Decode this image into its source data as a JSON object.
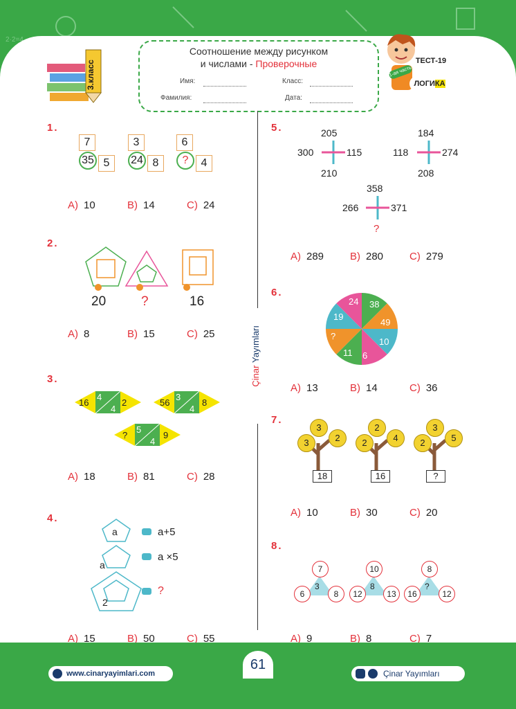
{
  "header": {
    "title_line1": "Соотношение между рисунком",
    "title_line2_a": "и числами - ",
    "title_line2_b": "Проверочные",
    "name_label": "Имя:",
    "class_label": "Класс:",
    "surname_label": "Фамилия:",
    "date_label": "Дата:",
    "grade_badge": "3.класс",
    "test_label": "ТЕСТ-19",
    "part_label": "1-ая часть",
    "subject_label_a": "ЛОГИ",
    "subject_label_b": "КА"
  },
  "side_label_a": "Çinar",
  "side_label_b": "Yayımları",
  "questions": {
    "q1": {
      "num": "1.",
      "tops": [
        "7",
        "3",
        "6"
      ],
      "circles": [
        "35",
        "24",
        "?"
      ],
      "sides": [
        "5",
        "8",
        "4"
      ],
      "options": [
        {
          "k": "A)",
          "v": "10"
        },
        {
          "k": "B)",
          "v": "14"
        },
        {
          "k": "C)",
          "v": "24"
        }
      ]
    },
    "q2": {
      "num": "2.",
      "values": [
        "20",
        "?",
        "16"
      ],
      "options": [
        {
          "k": "A)",
          "v": "8"
        },
        {
          "k": "B)",
          "v": "15"
        },
        {
          "k": "C)",
          "v": "25"
        }
      ]
    },
    "q3": {
      "num": "3.",
      "shapes": [
        {
          "left": "16",
          "top": "4",
          "bottom": "4",
          "right": "2"
        },
        {
          "left": "56",
          "top": "3",
          "bottom": "4",
          "right": "8"
        },
        {
          "left": "?",
          "top": "5",
          "bottom": "4",
          "right": "9"
        }
      ],
      "options": [
        {
          "k": "A)",
          "v": "18"
        },
        {
          "k": "B)",
          "v": "81"
        },
        {
          "k": "C)",
          "v": "28"
        }
      ]
    },
    "q4": {
      "num": "4.",
      "a1": "a",
      "a2": "a",
      "a3": "2",
      "rule1": "a+5",
      "rule2": "a ×5",
      "rule3": "?",
      "options": [
        {
          "k": "A)",
          "v": "15"
        },
        {
          "k": "B)",
          "v": "50"
        },
        {
          "k": "C)",
          "v": "55"
        }
      ]
    },
    "q5": {
      "num": "5.",
      "cross1": {
        "top": "205",
        "left": "300",
        "right": "115",
        "bottom": "210"
      },
      "cross2": {
        "top": "184",
        "left": "118",
        "right": "274",
        "bottom": "208"
      },
      "cross3": {
        "top": "358",
        "left": "266",
        "right": "371",
        "bottom": "?"
      },
      "options": [
        {
          "k": "A)",
          "v": "289"
        },
        {
          "k": "B)",
          "v": "280"
        },
        {
          "k": "C)",
          "v": "279"
        }
      ]
    },
    "q6": {
      "num": "6.",
      "slices": [
        "24",
        "38",
        "49",
        "10",
        "6",
        "11",
        "?",
        "19"
      ],
      "options": [
        {
          "k": "A)",
          "v": "13"
        },
        {
          "k": "B)",
          "v": "14"
        },
        {
          "k": "C)",
          "v": "36"
        }
      ]
    },
    "q7": {
      "num": "7.",
      "trees": [
        {
          "top": "3",
          "left": "3",
          "right": "2",
          "result": "18"
        },
        {
          "top": "2",
          "left": "2",
          "right": "4",
          "result": "16"
        },
        {
          "top": "3",
          "left": "2",
          "right": "5",
          "result": "?"
        }
      ],
      "options": [
        {
          "k": "A)",
          "v": "10"
        },
        {
          "k": "B)",
          "v": "30"
        },
        {
          "k": "C)",
          "v": "20"
        }
      ]
    },
    "q8": {
      "num": "8.",
      "triangles": [
        {
          "top": "7",
          "left": "6",
          "right": "8",
          "center": "3"
        },
        {
          "top": "10",
          "left": "12",
          "right": "13",
          "center": "8"
        },
        {
          "top": "8",
          "left": "16",
          "right": "12",
          "center": "?"
        }
      ],
      "options": [
        {
          "k": "A)",
          "v": "9"
        },
        {
          "k": "B)",
          "v": "8"
        },
        {
          "k": "C)",
          "v": "7"
        }
      ]
    }
  },
  "footer": {
    "website": "www.cinaryayimlari.com",
    "brand": "Çinar Yayımları",
    "page_number": "61"
  },
  "colors": {
    "green": "#3aa847",
    "red": "#e3313a",
    "pink": "#e8559a",
    "teal": "#4db8c9",
    "orange": "#f0932b",
    "yellow": "#f5e400"
  }
}
